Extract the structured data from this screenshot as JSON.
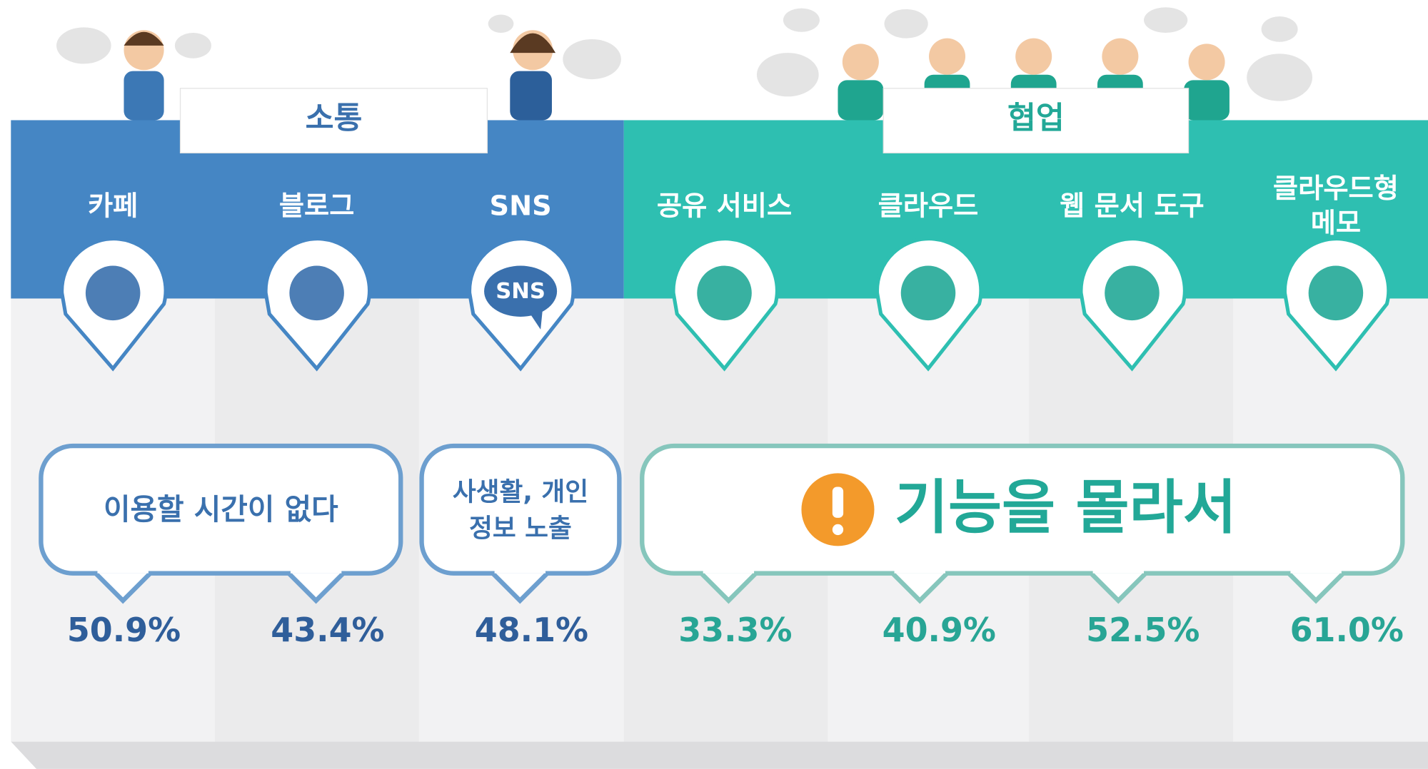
{
  "sections": [
    {
      "title": "소통",
      "columns": [
        {
          "label": [
            "카페"
          ],
          "value": "50.9%"
        },
        {
          "label": [
            "블로그"
          ],
          "value": "43.4%"
        },
        {
          "label": [
            "SNS"
          ],
          "value": "48.1%",
          "icon_text": "SNS"
        }
      ]
    },
    {
      "title": "협업",
      "columns": [
        {
          "label": [
            "공유 서비스"
          ],
          "value": "33.3%"
        },
        {
          "label": [
            "클라우드"
          ],
          "value": "40.9%"
        },
        {
          "label": [
            "웹 문서 도구"
          ],
          "value": "52.5%"
        },
        {
          "label": [
            "클라우드형",
            "메모"
          ],
          "value": "61.0%"
        }
      ]
    }
  ],
  "reasons": [
    {
      "lines": [
        "이용할 시간이 없다"
      ]
    },
    {
      "lines": [
        "사생활, 개인",
        "정보 노출"
      ]
    },
    {
      "lines": [
        "기능을 몰라서"
      ]
    }
  ]
}
